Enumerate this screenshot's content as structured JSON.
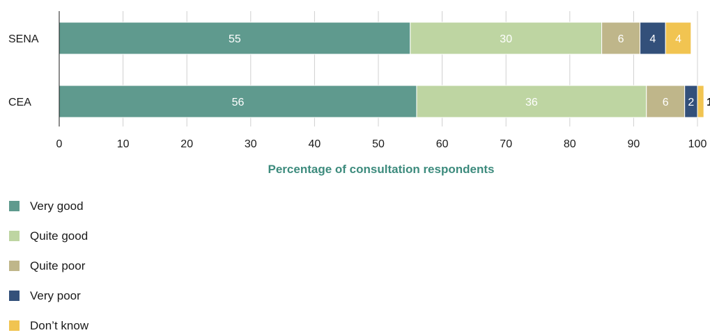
{
  "chart_data": {
    "type": "bar",
    "orientation": "horizontal",
    "stacked": true,
    "categories": [
      "SENA",
      "CEA"
    ],
    "series": [
      {
        "name": "Very good",
        "values": [
          55,
          56
        ],
        "color": "#5f9a8e",
        "label_color": "#ffffff"
      },
      {
        "name": "Quite good",
        "values": [
          30,
          36
        ],
        "color": "#bed5a2",
        "label_color": "#ffffff"
      },
      {
        "name": "Quite poor",
        "values": [
          6,
          6
        ],
        "color": "#bfb68a",
        "label_color": "#ffffff"
      },
      {
        "name": "Very poor",
        "values": [
          4,
          2
        ],
        "color": "#33507a",
        "label_color": "#ffffff"
      },
      {
        "name": "Don’t know",
        "values": [
          4,
          1
        ],
        "color": "#f1c451",
        "label_color": "#ffffff"
      }
    ],
    "xlabel": "Percentage of consultation respondents",
    "xlabel_color": "#3d8b7d",
    "xlim": [
      0,
      100
    ],
    "xticks": [
      0,
      10,
      20,
      30,
      40,
      50,
      60,
      70,
      80,
      90,
      100
    ],
    "grid": "vertical",
    "legend_position": "bottom-left"
  }
}
